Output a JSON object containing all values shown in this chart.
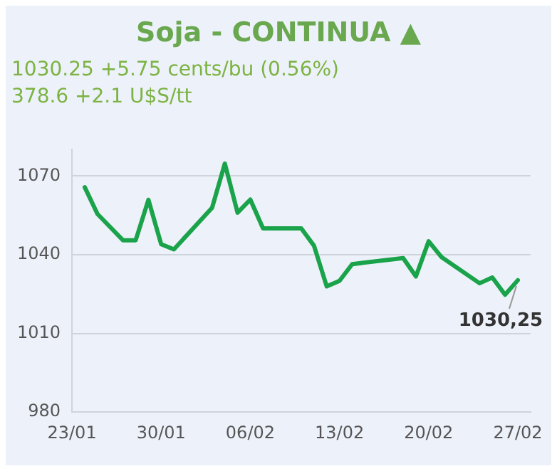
{
  "chart_data": {
    "type": "line",
    "title": "Soja - CONTINUA ▲",
    "subtitle": "1030.25 +5.75 cents/bu (0.56%)\n378.6 +2.1 U$S/tt",
    "x": [
      "--01-24",
      "--01-25",
      "--01-27",
      "--01-28",
      "--01-29",
      "--01-30",
      "--01-31",
      "--02-03",
      "--02-04",
      "--02-05",
      "--02-06",
      "--02-07",
      "--02-10",
      "--02-11",
      "--02-12",
      "--02-13",
      "--02-14",
      "--02-18",
      "--02-19",
      "--02-20",
      "--02-21",
      "--02-24",
      "--02-25",
      "--02-26",
      "--02-27"
    ],
    "series": [
      {
        "color": "#1aa34a",
        "values": [
          1065.7,
          1055.5,
          1045.5,
          1045.5,
          1060.9,
          1044,
          1042,
          1057.9,
          1074.7,
          1056,
          1061,
          1050,
          1050,
          1043.4,
          1027.9,
          1030,
          1036.4,
          1038.7,
          1031.7,
          1045.1,
          1039.1,
          1029.1,
          1031.3,
          1024.7,
          1030.25
        ]
      }
    ],
    "xlim": [
      "--01-23",
      "--02-28"
    ],
    "xticks": [
      {
        "value": "--01-23",
        "label": "23/01"
      },
      {
        "value": "--01-30",
        "label": "30/01"
      },
      {
        "value": "--02-06",
        "label": "06/02"
      },
      {
        "value": "--02-13",
        "label": "13/02"
      },
      {
        "value": "--02-20",
        "label": "20/02"
      },
      {
        "value": "--02-27",
        "label": "27/02"
      }
    ],
    "ylim": [
      980,
      1080
    ],
    "yticks": [
      980,
      1010,
      1040,
      1070
    ],
    "grid": "y",
    "marker": "none",
    "annotations": [
      {
        "text": "1030,25",
        "x": "--02-27",
        "y": 1030.25
      }
    ]
  }
}
